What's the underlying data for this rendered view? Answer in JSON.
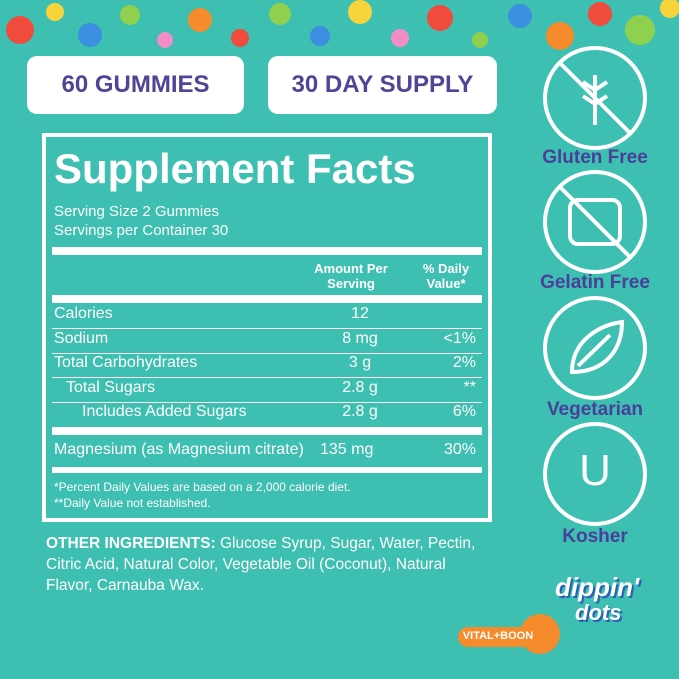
{
  "badges": [
    "60 GUMMIES",
    "30 DAY SUPPLY"
  ],
  "facts": {
    "title": "Supplement Facts",
    "serving_size": "Serving Size 2 Gummies",
    "servings": "Servings per Container 30",
    "header": {
      "amount": "Amount Per Serving",
      "dv": "% Daily Value*"
    },
    "rows": [
      {
        "name": "Calories",
        "amount": "12"
      },
      {
        "name": "Sodium",
        "amount": "8 mg",
        "dv": "<1%"
      },
      {
        "name": "Total Carbohydrates",
        "amount": "3 g",
        "dv": "2%"
      },
      {
        "name": "Total Sugars",
        "amount": "2.8 g",
        "dv": "**"
      },
      {
        "name": "Includes Added Sugars",
        "amount": "2.8 g",
        "dv": "6%"
      }
    ],
    "mineral": {
      "name": "Magnesium (as Magnesium citrate)",
      "amount": "135 mg",
      "dv": "30%"
    },
    "footnotes": [
      "*Percent Daily Values are based on a 2,000 calorie diet.",
      "**Daily Value not established."
    ]
  },
  "ingredients": {
    "label": "OTHER INGREDIENTS:",
    "text": "Glucose Syrup, Sugar, Water, Pectin, Citric Acid, Natural Color, Vegetable Oil (Coconut), Natural Flavor, Carnauba Wax."
  },
  "icons": [
    "Gluten Free",
    "Gelatin Free",
    "Vegetarian",
    "Kosher"
  ],
  "kosher_symbol": "U",
  "logo": {
    "brand_top": "dippin'",
    "brand_bottom": "dots",
    "partner": "VITAL+BOON"
  }
}
